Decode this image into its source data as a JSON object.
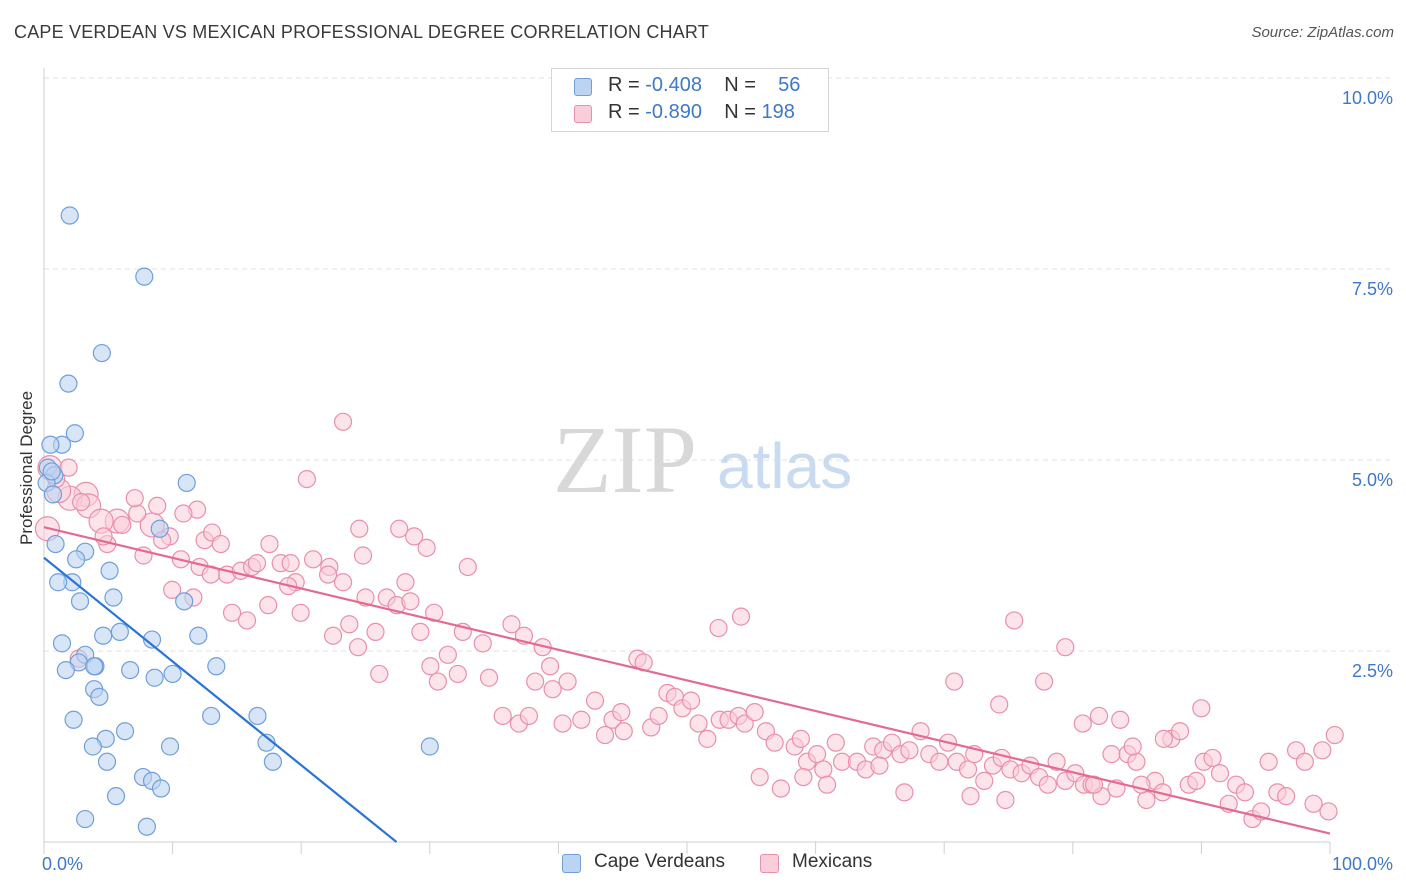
{
  "title": "CAPE VERDEAN VS MEXICAN PROFESSIONAL DEGREE CORRELATION CHART",
  "source": "Source: ZipAtlas.com",
  "watermark": {
    "zip": "ZIP",
    "atlas": "atlas"
  },
  "colors": {
    "blue_fill": "#bcd3f2",
    "blue_stroke": "#6f9fdc",
    "blue_line": "#2a74d6",
    "pink_fill": "#f9cdd9",
    "pink_stroke": "#ea8fab",
    "pink_line": "#e36a93",
    "axis_text": "#3e78c8",
    "grid": "#e2e2e2"
  },
  "legend": {
    "rows": [
      {
        "r_label": "R = ",
        "r_value": "-0.408",
        "n_label": "N = ",
        "n_value": "56"
      },
      {
        "r_label": "R = ",
        "r_value": "-0.890",
        "n_label": "N = ",
        "n_value": "198"
      }
    ]
  },
  "bottom_legend": {
    "cape": "Cape Verdeans",
    "mexican": "Mexicans"
  },
  "chart_data": {
    "type": "scatter",
    "title": "CAPE VERDEAN VS MEXICAN PROFESSIONAL DEGREE CORRELATION CHART",
    "xlabel": "",
    "ylabel": "Professional Degree",
    "xlim": [
      0,
      100
    ],
    "ylim": [
      0,
      10.5
    ],
    "x_tick_labels": [
      "0.0%",
      "100.0%"
    ],
    "y_ticks": [
      2.5,
      5.0,
      7.5,
      10.0
    ],
    "y_tick_labels": [
      "2.5%",
      "5.0%",
      "7.5%",
      "10.0%"
    ],
    "grid": true,
    "legend_position": "top-center",
    "series": [
      {
        "name": "Cape Verdeans",
        "r": -0.408,
        "n": 56,
        "trend": {
          "x0": 0,
          "y0": 3.72,
          "x1": 27.8,
          "y1": 0.0
        },
        "points": [
          [
            2.0,
            8.2
          ],
          [
            7.8,
            7.4
          ],
          [
            4.5,
            6.4
          ],
          [
            1.9,
            6.0
          ],
          [
            2.4,
            5.35
          ],
          [
            1.4,
            5.2
          ],
          [
            0.5,
            5.2
          ],
          [
            0.3,
            4.9
          ],
          [
            0.8,
            4.8
          ],
          [
            0.2,
            4.7
          ],
          [
            0.7,
            4.55
          ],
          [
            11.1,
            4.7
          ],
          [
            0.9,
            3.9
          ],
          [
            9.0,
            4.1
          ],
          [
            3.2,
            3.8
          ],
          [
            2.5,
            3.7
          ],
          [
            5.1,
            3.55
          ],
          [
            2.2,
            3.4
          ],
          [
            1.1,
            3.4
          ],
          [
            5.4,
            3.2
          ],
          [
            2.8,
            3.15
          ],
          [
            10.9,
            3.15
          ],
          [
            5.9,
            2.75
          ],
          [
            4.6,
            2.7
          ],
          [
            8.4,
            2.65
          ],
          [
            12.0,
            2.7
          ],
          [
            1.4,
            2.6
          ],
          [
            3.2,
            2.45
          ],
          [
            2.7,
            2.35
          ],
          [
            4.0,
            2.3
          ],
          [
            3.9,
            2.3
          ],
          [
            1.7,
            2.25
          ],
          [
            6.7,
            2.25
          ],
          [
            13.4,
            2.3
          ],
          [
            10.0,
            2.2
          ],
          [
            8.6,
            2.15
          ],
          [
            3.9,
            2.0
          ],
          [
            4.3,
            1.9
          ],
          [
            13.0,
            1.65
          ],
          [
            16.6,
            1.65
          ],
          [
            2.3,
            1.6
          ],
          [
            6.3,
            1.45
          ],
          [
            4.8,
            1.35
          ],
          [
            3.8,
            1.25
          ],
          [
            9.8,
            1.25
          ],
          [
            17.3,
            1.3
          ],
          [
            30.0,
            1.25
          ],
          [
            4.9,
            1.05
          ],
          [
            17.8,
            1.05
          ],
          [
            7.7,
            0.85
          ],
          [
            8.4,
            0.8
          ],
          [
            9.1,
            0.7
          ],
          [
            5.6,
            0.6
          ],
          [
            3.2,
            0.3
          ],
          [
            8.0,
            0.2
          ],
          [
            0.6,
            4.85
          ]
        ]
      },
      {
        "name": "Mexicans",
        "r": -0.89,
        "n": 198,
        "trend": {
          "x0": 0,
          "y0": 4.12,
          "x1": 100,
          "y1": 0.15
        },
        "points": [
          [
            0.5,
            4.9
          ],
          [
            2.0,
            4.9
          ],
          [
            3.4,
            4.55
          ],
          [
            2.1,
            4.5
          ],
          [
            3.6,
            4.4
          ],
          [
            0.3,
            4.1
          ],
          [
            5.9,
            4.2
          ],
          [
            4.6,
            4.2
          ],
          [
            8.7,
            4.15
          ],
          [
            7.5,
            4.3
          ],
          [
            9.1,
            4.4
          ],
          [
            12.3,
            4.35
          ],
          [
            11.2,
            4.3
          ],
          [
            10.1,
            4.0
          ],
          [
            12.9,
            3.95
          ],
          [
            5.1,
            3.9
          ],
          [
            8.0,
            3.75
          ],
          [
            11.0,
            3.7
          ],
          [
            13.5,
            4.05
          ],
          [
            14.2,
            3.9
          ],
          [
            12.5,
            3.6
          ],
          [
            14.7,
            3.5
          ],
          [
            15.8,
            3.55
          ],
          [
            16.7,
            3.6
          ],
          [
            17.1,
            3.65
          ],
          [
            18.1,
            3.9
          ],
          [
            19.0,
            3.65
          ],
          [
            19.8,
            3.65
          ],
          [
            21.6,
            3.7
          ],
          [
            20.2,
            3.4
          ],
          [
            22.9,
            3.6
          ],
          [
            24.0,
            3.4
          ],
          [
            25.3,
            4.1
          ],
          [
            25.6,
            3.75
          ],
          [
            28.5,
            4.1
          ],
          [
            29.7,
            4.0
          ],
          [
            30.7,
            3.85
          ],
          [
            34.0,
            3.6
          ],
          [
            21.1,
            4.75
          ],
          [
            25.8,
            3.2
          ],
          [
            29.0,
            3.4
          ],
          [
            26.6,
            2.75
          ],
          [
            27.5,
            3.2
          ],
          [
            28.3,
            3.1
          ],
          [
            29.4,
            3.15
          ],
          [
            31.3,
            3.0
          ],
          [
            33.6,
            2.75
          ],
          [
            35.2,
            2.6
          ],
          [
            37.5,
            2.85
          ],
          [
            38.5,
            2.7
          ],
          [
            40.0,
            2.55
          ],
          [
            40.6,
            2.3
          ],
          [
            22.8,
            3.5
          ],
          [
            23.2,
            2.7
          ],
          [
            24.5,
            2.85
          ],
          [
            25.2,
            2.55
          ],
          [
            26.9,
            2.2
          ],
          [
            18.0,
            3.1
          ],
          [
            19.6,
            3.35
          ],
          [
            20.6,
            3.0
          ],
          [
            16.3,
            2.9
          ],
          [
            15.1,
            3.0
          ],
          [
            13.4,
            3.5
          ],
          [
            12.0,
            3.2
          ],
          [
            10.3,
            3.3
          ],
          [
            9.5,
            3.95
          ],
          [
            6.3,
            4.15
          ],
          [
            7.3,
            4.5
          ],
          [
            4.8,
            4.0
          ],
          [
            3.0,
            4.45
          ],
          [
            1.2,
            4.6
          ],
          [
            1.0,
            4.75
          ],
          [
            2.8,
            2.4
          ],
          [
            24.0,
            5.5
          ],
          [
            30.2,
            2.75
          ],
          [
            31.0,
            2.3
          ],
          [
            32.4,
            2.45
          ],
          [
            33.2,
            2.2
          ],
          [
            31.6,
            2.1
          ],
          [
            35.7,
            2.15
          ],
          [
            36.8,
            1.65
          ],
          [
            38.1,
            1.55
          ],
          [
            38.9,
            1.65
          ],
          [
            39.4,
            2.1
          ],
          [
            40.8,
            2.0
          ],
          [
            41.6,
            1.55
          ],
          [
            42.0,
            2.1
          ],
          [
            43.1,
            1.6
          ],
          [
            44.2,
            1.85
          ],
          [
            45.0,
            1.4
          ],
          [
            45.6,
            1.6
          ],
          [
            46.5,
            1.45
          ],
          [
            46.3,
            1.7
          ],
          [
            47.6,
            2.4
          ],
          [
            48.1,
            2.35
          ],
          [
            48.7,
            1.5
          ],
          [
            49.3,
            1.65
          ],
          [
            50.0,
            1.95
          ],
          [
            50.6,
            1.9
          ],
          [
            51.2,
            1.75
          ],
          [
            51.9,
            1.85
          ],
          [
            52.5,
            1.55
          ],
          [
            53.2,
            1.35
          ],
          [
            54.2,
            1.6
          ],
          [
            54.9,
            1.6
          ],
          [
            55.7,
            1.65
          ],
          [
            56.2,
            1.55
          ],
          [
            57.0,
            1.7
          ],
          [
            57.9,
            1.45
          ],
          [
            58.6,
            1.3
          ],
          [
            59.1,
            0.7
          ],
          [
            60.2,
            1.25
          ],
          [
            60.7,
            1.35
          ],
          [
            61.2,
            1.05
          ],
          [
            62.0,
            1.15
          ],
          [
            62.5,
            0.95
          ],
          [
            63.5,
            1.3
          ],
          [
            64.0,
            1.05
          ],
          [
            65.2,
            1.05
          ],
          [
            65.9,
            0.95
          ],
          [
            66.5,
            1.25
          ],
          [
            67.3,
            1.2
          ],
          [
            68.0,
            1.3
          ],
          [
            68.7,
            1.15
          ],
          [
            69.4,
            1.2
          ],
          [
            70.3,
            1.45
          ],
          [
            71.0,
            1.15
          ],
          [
            71.8,
            1.05
          ],
          [
            72.5,
            1.3
          ],
          [
            73.2,
            1.05
          ],
          [
            74.1,
            0.95
          ],
          [
            74.6,
            1.15
          ],
          [
            75.4,
            0.8
          ],
          [
            76.1,
            1.0
          ],
          [
            76.8,
            1.1
          ],
          [
            77.5,
            0.95
          ],
          [
            78.4,
            0.9
          ],
          [
            79.1,
            1.0
          ],
          [
            79.8,
            0.85
          ],
          [
            80.5,
            0.75
          ],
          [
            81.2,
            1.05
          ],
          [
            81.9,
            0.8
          ],
          [
            82.7,
            0.9
          ],
          [
            83.4,
            0.75
          ],
          [
            84.0,
            0.75
          ],
          [
            84.8,
            0.6
          ],
          [
            85.6,
            1.15
          ],
          [
            86.3,
            1.6
          ],
          [
            86.9,
            1.15
          ],
          [
            87.6,
            1.05
          ],
          [
            88.4,
            0.55
          ],
          [
            89.1,
            0.8
          ],
          [
            89.7,
            0.65
          ],
          [
            90.4,
            1.35
          ],
          [
            91.1,
            1.45
          ],
          [
            91.8,
            0.75
          ],
          [
            92.4,
            0.8
          ],
          [
            93.0,
            1.05
          ],
          [
            93.7,
            1.1
          ],
          [
            94.3,
            0.9
          ],
          [
            95.0,
            0.5
          ],
          [
            95.6,
            0.75
          ],
          [
            96.3,
            0.65
          ],
          [
            96.9,
            0.3
          ],
          [
            97.6,
            0.4
          ],
          [
            98.2,
            1.05
          ],
          [
            98.9,
            0.65
          ],
          [
            99.6,
            0.6
          ],
          [
            100.4,
            1.2
          ],
          [
            101.1,
            1.05
          ],
          [
            101.8,
            0.5
          ],
          [
            102.5,
            1.2
          ],
          [
            103.0,
            0.4
          ],
          [
            103.5,
            1.4
          ],
          [
            54.1,
            2.8
          ],
          [
            55.9,
            2.95
          ],
          [
            73.0,
            2.1
          ],
          [
            76.6,
            1.8
          ],
          [
            77.8,
            2.9
          ],
          [
            80.2,
            2.1
          ],
          [
            81.9,
            2.55
          ],
          [
            83.3,
            1.55
          ],
          [
            87.3,
            1.25
          ],
          [
            86.0,
            0.7
          ],
          [
            89.8,
            1.35
          ],
          [
            84.6,
            1.65
          ],
          [
            92.8,
            1.75
          ],
          [
            67.0,
            1.0
          ],
          [
            69.0,
            0.65
          ],
          [
            62.8,
            0.75
          ],
          [
            60.9,
            0.85
          ],
          [
            57.4,
            0.85
          ],
          [
            74.3,
            0.6
          ],
          [
            77.1,
            0.55
          ],
          [
            84.2,
            0.75
          ],
          [
            88.0,
            0.75
          ]
        ]
      }
    ]
  }
}
